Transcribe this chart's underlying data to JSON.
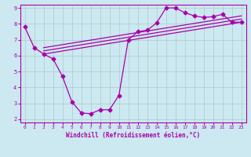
{
  "xlabel": "Windchill (Refroidissement éolien,°C)",
  "bg_color": "#cce8f0",
  "line_color": "#aa00aa",
  "grid_color": "#aacccc",
  "xlim": [
    -0.5,
    23.5
  ],
  "ylim": [
    1.8,
    9.2
  ],
  "xticks": [
    0,
    1,
    2,
    3,
    4,
    5,
    6,
    7,
    8,
    9,
    10,
    11,
    12,
    13,
    14,
    15,
    16,
    17,
    18,
    19,
    20,
    21,
    22,
    23
  ],
  "yticks": [
    2,
    3,
    4,
    5,
    6,
    7,
    8,
    9
  ],
  "main_x": [
    0,
    1,
    2,
    3,
    4,
    5,
    6,
    7,
    8,
    9,
    10,
    11,
    12,
    13,
    14,
    15,
    16,
    17,
    18,
    19,
    20,
    21,
    22,
    23
  ],
  "main_y": [
    7.8,
    6.5,
    6.1,
    5.8,
    4.7,
    3.1,
    2.4,
    2.35,
    2.6,
    2.6,
    3.5,
    7.0,
    7.5,
    7.6,
    8.05,
    9.0,
    9.0,
    8.7,
    8.5,
    8.4,
    8.45,
    8.6,
    8.1,
    8.1
  ],
  "line1_x": [
    2,
    23
  ],
  "line1_y": [
    6.1,
    8.1
  ],
  "line2_x": [
    2,
    23
  ],
  "line2_y": [
    6.3,
    8.3
  ],
  "line3_x": [
    2,
    23
  ],
  "line3_y": [
    6.5,
    8.5
  ]
}
